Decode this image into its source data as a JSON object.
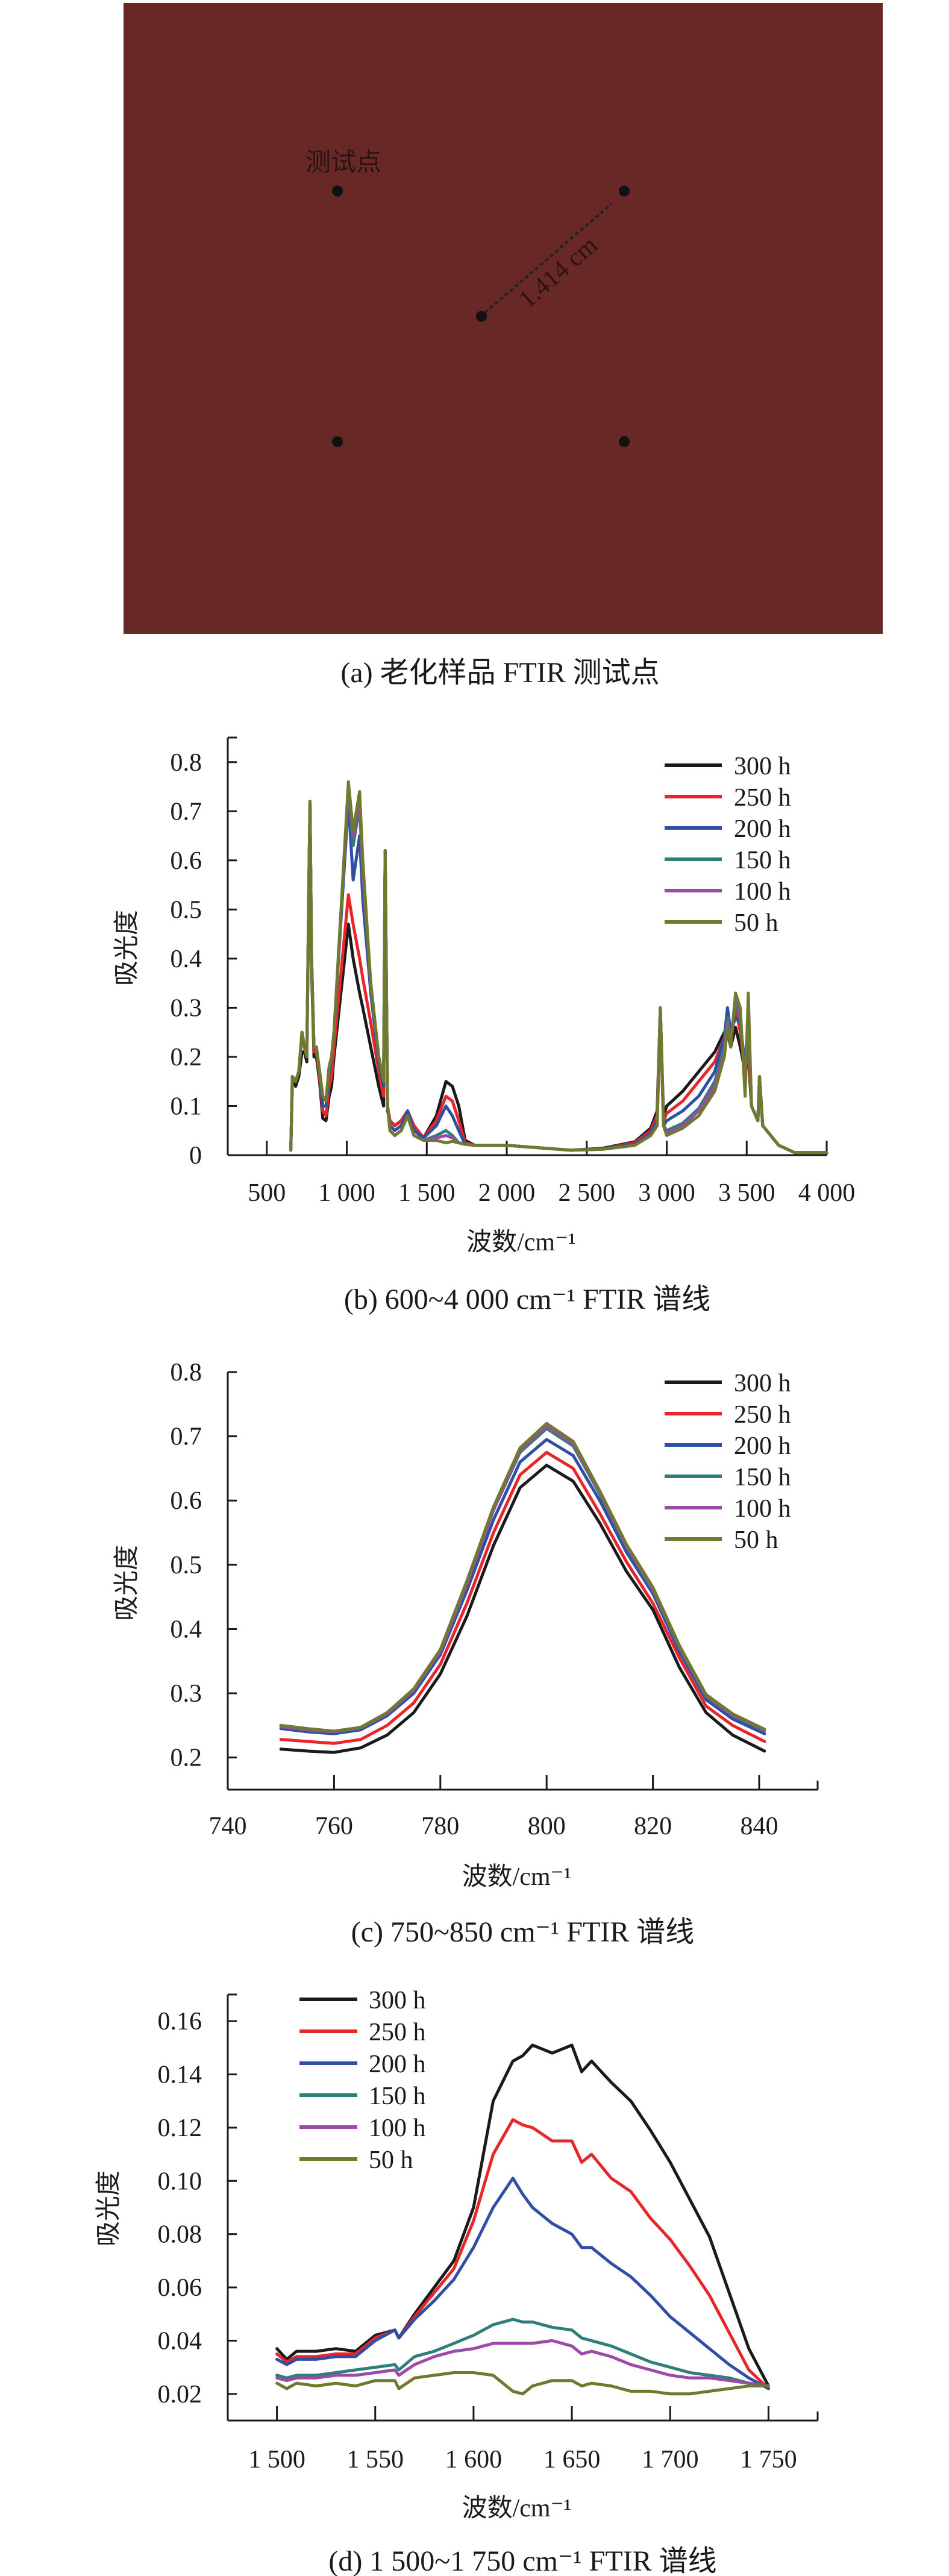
{
  "panel_a": {
    "caption": "(a) 老化样品 FTIR 测试点",
    "point_label": "测试点",
    "distance_label": "1.414 cm",
    "sample_color": "#672826"
  },
  "chart_data": [
    {
      "id": "b",
      "type": "line",
      "caption": "(b) 600~4 000 cm⁻¹ FTIR 谱线",
      "xlabel": "波数/cm⁻¹",
      "ylabel": "吸光度",
      "xlim": [
        256,
        4000
      ],
      "ylim": [
        0,
        0.85
      ],
      "xticks": [
        500,
        1000,
        1500,
        2000,
        2500,
        3000,
        3500,
        4000
      ],
      "xtick_labels": [
        "500",
        "1 000",
        "1 500",
        "2 000",
        "2 500",
        "3 000",
        "3 500",
        "4 000"
      ],
      "yticks": [
        0,
        0.1,
        0.2,
        0.3,
        0.4,
        0.5,
        0.6,
        0.7,
        0.8
      ],
      "ytick_labels": [
        "0",
        "0.1",
        "0.2",
        "0.3",
        "0.4",
        "0.5",
        "0.6",
        "0.7",
        "0.8"
      ],
      "legend_position": "top-right",
      "x": [
        650,
        660,
        680,
        700,
        720,
        735,
        750,
        765,
        770,
        780,
        795,
        810,
        830,
        850,
        870,
        890,
        905,
        920,
        1010,
        1040,
        1080,
        1100,
        1150,
        1200,
        1230,
        1240,
        1255,
        1270,
        1300,
        1340,
        1380,
        1420,
        1480,
        1560,
        1620,
        1660,
        1700,
        1740,
        1800,
        2000,
        2200,
        2400,
        2600,
        2800,
        2900,
        2940,
        2960,
        2980,
        3000,
        3100,
        3200,
        3300,
        3360,
        3380,
        3400,
        3430,
        3460,
        3490,
        3510,
        3530,
        3570,
        3580,
        3600,
        3700,
        3800,
        4000
      ],
      "series": [
        {
          "name": "300 h",
          "color": "#1a1a1a",
          "values": [
            0.01,
            0.16,
            0.14,
            0.16,
            0.21,
            0.21,
            0.19,
            0.58,
            0.7,
            0.38,
            0.2,
            0.2,
            0.15,
            0.075,
            0.07,
            0.12,
            0.14,
            0.2,
            0.47,
            0.4,
            0.33,
            0.3,
            0.22,
            0.14,
            0.1,
            0.62,
            0.09,
            0.07,
            0.06,
            0.07,
            0.09,
            0.06,
            0.035,
            0.08,
            0.15,
            0.14,
            0.1,
            0.03,
            0.02,
            0.02,
            0.015,
            0.01,
            0.014,
            0.027,
            0.055,
            0.09,
            0.3,
            0.08,
            0.1,
            0.13,
            0.17,
            0.21,
            0.25,
            0.25,
            0.22,
            0.26,
            0.22,
            0.17,
            0.2,
            0.1,
            0.07,
            0.16,
            0.06,
            0.02,
            0.005,
            0.005
          ]
        },
        {
          "name": "250 h",
          "color": "#e8262a",
          "values": [
            0.01,
            0.16,
            0.15,
            0.17,
            0.25,
            0.22,
            0.2,
            0.6,
            0.72,
            0.4,
            0.21,
            0.21,
            0.16,
            0.09,
            0.08,
            0.14,
            0.16,
            0.22,
            0.53,
            0.47,
            0.4,
            0.36,
            0.27,
            0.17,
            0.12,
            0.62,
            0.1,
            0.07,
            0.06,
            0.07,
            0.09,
            0.06,
            0.035,
            0.07,
            0.12,
            0.11,
            0.07,
            0.025,
            0.02,
            0.02,
            0.015,
            0.01,
            0.013,
            0.025,
            0.05,
            0.08,
            0.3,
            0.07,
            0.085,
            0.11,
            0.15,
            0.19,
            0.24,
            0.26,
            0.23,
            0.3,
            0.25,
            0.17,
            0.22,
            0.1,
            0.07,
            0.16,
            0.06,
            0.02,
            0.005,
            0.005
          ]
        },
        {
          "name": "200 h",
          "color": "#2e4fa3",
          "values": [
            0.01,
            0.16,
            0.15,
            0.17,
            0.25,
            0.22,
            0.2,
            0.6,
            0.72,
            0.4,
            0.22,
            0.22,
            0.17,
            0.1,
            0.1,
            0.17,
            0.2,
            0.25,
            0.72,
            0.56,
            0.65,
            0.52,
            0.33,
            0.19,
            0.14,
            0.62,
            0.1,
            0.06,
            0.05,
            0.06,
            0.09,
            0.05,
            0.035,
            0.06,
            0.1,
            0.08,
            0.05,
            0.022,
            0.02,
            0.02,
            0.015,
            0.01,
            0.013,
            0.022,
            0.045,
            0.07,
            0.3,
            0.06,
            0.07,
            0.09,
            0.12,
            0.17,
            0.24,
            0.3,
            0.25,
            0.28,
            0.27,
            0.18,
            0.28,
            0.1,
            0.07,
            0.16,
            0.06,
            0.02,
            0.005,
            0.005
          ]
        },
        {
          "name": "150 h",
          "color": "#2e7f7a",
          "values": [
            0.01,
            0.16,
            0.15,
            0.17,
            0.25,
            0.22,
            0.2,
            0.6,
            0.72,
            0.4,
            0.22,
            0.22,
            0.17,
            0.12,
            0.11,
            0.18,
            0.2,
            0.25,
            0.75,
            0.63,
            0.71,
            0.57,
            0.35,
            0.2,
            0.15,
            0.62,
            0.1,
            0.05,
            0.04,
            0.05,
            0.08,
            0.04,
            0.03,
            0.04,
            0.05,
            0.04,
            0.025,
            0.022,
            0.02,
            0.02,
            0.015,
            0.01,
            0.012,
            0.02,
            0.04,
            0.06,
            0.3,
            0.06,
            0.05,
            0.065,
            0.095,
            0.15,
            0.22,
            0.28,
            0.23,
            0.31,
            0.28,
            0.15,
            0.3,
            0.1,
            0.07,
            0.16,
            0.06,
            0.02,
            0.005,
            0.005
          ]
        },
        {
          "name": "100 h",
          "color": "#9b4aa8",
          "values": [
            0.01,
            0.16,
            0.15,
            0.17,
            0.25,
            0.22,
            0.2,
            0.6,
            0.72,
            0.4,
            0.22,
            0.22,
            0.17,
            0.12,
            0.11,
            0.18,
            0.2,
            0.25,
            0.75,
            0.65,
            0.72,
            0.58,
            0.35,
            0.2,
            0.15,
            0.62,
            0.1,
            0.05,
            0.04,
            0.05,
            0.08,
            0.04,
            0.03,
            0.035,
            0.04,
            0.035,
            0.025,
            0.022,
            0.02,
            0.02,
            0.015,
            0.01,
            0.012,
            0.02,
            0.04,
            0.06,
            0.3,
            0.06,
            0.045,
            0.06,
            0.09,
            0.14,
            0.21,
            0.27,
            0.23,
            0.32,
            0.29,
            0.14,
            0.31,
            0.1,
            0.07,
            0.16,
            0.06,
            0.02,
            0.005,
            0.005
          ]
        },
        {
          "name": "50 h",
          "color": "#6f7a2e",
          "values": [
            0.01,
            0.16,
            0.15,
            0.17,
            0.25,
            0.22,
            0.2,
            0.6,
            0.72,
            0.4,
            0.22,
            0.22,
            0.17,
            0.12,
            0.11,
            0.18,
            0.2,
            0.25,
            0.76,
            0.66,
            0.74,
            0.6,
            0.35,
            0.2,
            0.15,
            0.62,
            0.1,
            0.05,
            0.04,
            0.05,
            0.08,
            0.04,
            0.03,
            0.03,
            0.025,
            0.028,
            0.025,
            0.022,
            0.02,
            0.02,
            0.015,
            0.01,
            0.012,
            0.02,
            0.04,
            0.06,
            0.3,
            0.06,
            0.04,
            0.055,
            0.08,
            0.13,
            0.2,
            0.26,
            0.22,
            0.33,
            0.3,
            0.12,
            0.33,
            0.1,
            0.07,
            0.16,
            0.06,
            0.02,
            0.005,
            0.005
          ]
        }
      ]
    },
    {
      "id": "c",
      "type": "line",
      "caption": "(c) 750~850 cm⁻¹ FTIR 谱线",
      "xlabel": "波数/cm⁻¹",
      "ylabel": "吸光度",
      "xlim": [
        740,
        851
      ],
      "ylim": [
        0.15,
        0.8
      ],
      "xticks": [
        740,
        760,
        780,
        800,
        820,
        840
      ],
      "xtick_labels": [
        "740",
        "760",
        "780",
        "800",
        "820",
        "840"
      ],
      "yticks": [
        0.2,
        0.3,
        0.4,
        0.5,
        0.6,
        0.7,
        0.8
      ],
      "ytick_labels": [
        "0.2",
        "0.3",
        "0.4",
        "0.5",
        "0.6",
        "0.7",
        "0.8"
      ],
      "legend_position": "top-right",
      "x": [
        750,
        755,
        760,
        765,
        770,
        775,
        780,
        785,
        790,
        795,
        800,
        805,
        810,
        815,
        820,
        825,
        830,
        835,
        841
      ],
      "series": [
        {
          "name": "300 h",
          "color": "#1a1a1a",
          "values": [
            0.213,
            0.21,
            0.208,
            0.215,
            0.235,
            0.27,
            0.33,
            0.42,
            0.53,
            0.62,
            0.655,
            0.63,
            0.565,
            0.49,
            0.43,
            0.34,
            0.27,
            0.235,
            0.21
          ]
        },
        {
          "name": "250 h",
          "color": "#e8262a",
          "values": [
            0.228,
            0.225,
            0.222,
            0.228,
            0.25,
            0.285,
            0.345,
            0.44,
            0.55,
            0.64,
            0.675,
            0.65,
            0.58,
            0.505,
            0.44,
            0.355,
            0.28,
            0.25,
            0.225
          ]
        },
        {
          "name": "200 h",
          "color": "#2e4fa3",
          "values": [
            0.245,
            0.24,
            0.237,
            0.243,
            0.265,
            0.3,
            0.36,
            0.46,
            0.57,
            0.66,
            0.695,
            0.67,
            0.6,
            0.52,
            0.455,
            0.365,
            0.29,
            0.26,
            0.237
          ]
        },
        {
          "name": "150 h",
          "color": "#2e7f7a",
          "values": [
            0.248,
            0.243,
            0.24,
            0.246,
            0.268,
            0.305,
            0.365,
            0.47,
            0.585,
            0.675,
            0.712,
            0.685,
            0.61,
            0.528,
            0.46,
            0.37,
            0.295,
            0.265,
            0.242
          ]
        },
        {
          "name": "100 h",
          "color": "#9b4aa8",
          "values": [
            0.248,
            0.243,
            0.24,
            0.246,
            0.268,
            0.305,
            0.365,
            0.47,
            0.585,
            0.678,
            0.716,
            0.688,
            0.612,
            0.53,
            0.462,
            0.372,
            0.296,
            0.266,
            0.243
          ]
        },
        {
          "name": "50 h",
          "color": "#6f7a2e",
          "values": [
            0.25,
            0.245,
            0.241,
            0.247,
            0.27,
            0.307,
            0.368,
            0.475,
            0.59,
            0.682,
            0.72,
            0.692,
            0.615,
            0.532,
            0.465,
            0.374,
            0.298,
            0.268,
            0.244
          ]
        }
      ]
    },
    {
      "id": "d",
      "type": "line",
      "caption": "(d) 1 500~1 750 cm⁻¹ FTIR 谱线",
      "xlabel": "波数/cm⁻¹",
      "ylabel": "吸光度",
      "xlim": [
        1475,
        1775
      ],
      "ylim": [
        0.01,
        0.17
      ],
      "xticks": [
        1500,
        1550,
        1600,
        1650,
        1700,
        1750
      ],
      "xtick_labels": [
        "1 500",
        "1 550",
        "1 600",
        "1 650",
        "1 700",
        "1 750"
      ],
      "yticks": [
        0.02,
        0.04,
        0.06,
        0.08,
        0.1,
        0.12,
        0.14,
        0.16
      ],
      "ytick_labels": [
        "0.02",
        "0.04",
        "0.06",
        "0.08",
        "0.10",
        "0.12",
        "0.14",
        "0.16"
      ],
      "legend_position": "top-left",
      "x": [
        1500,
        1505,
        1510,
        1520,
        1530,
        1540,
        1550,
        1560,
        1562,
        1570,
        1580,
        1590,
        1600,
        1610,
        1620,
        1625,
        1630,
        1640,
        1650,
        1655,
        1660,
        1670,
        1680,
        1690,
        1700,
        1710,
        1720,
        1730,
        1740,
        1750
      ],
      "series": [
        {
          "name": "300 h",
          "color": "#1a1a1a",
          "values": [
            0.037,
            0.033,
            0.036,
            0.036,
            0.037,
            0.036,
            0.042,
            0.044,
            0.041,
            0.05,
            0.06,
            0.07,
            0.09,
            0.13,
            0.145,
            0.147,
            0.151,
            0.148,
            0.151,
            0.141,
            0.145,
            0.137,
            0.13,
            0.119,
            0.107,
            0.093,
            0.079,
            0.058,
            0.037,
            0.023
          ]
        },
        {
          "name": "250 h",
          "color": "#e8262a",
          "values": [
            0.035,
            0.032,
            0.034,
            0.034,
            0.035,
            0.035,
            0.041,
            0.044,
            0.041,
            0.049,
            0.058,
            0.067,
            0.085,
            0.11,
            0.123,
            0.121,
            0.12,
            0.115,
            0.115,
            0.107,
            0.11,
            0.101,
            0.096,
            0.086,
            0.078,
            0.068,
            0.057,
            0.043,
            0.029,
            0.022
          ]
        },
        {
          "name": "200 h",
          "color": "#2e4fa3",
          "values": [
            0.033,
            0.031,
            0.033,
            0.033,
            0.034,
            0.034,
            0.04,
            0.044,
            0.041,
            0.048,
            0.055,
            0.063,
            0.075,
            0.09,
            0.101,
            0.095,
            0.09,
            0.084,
            0.08,
            0.075,
            0.075,
            0.069,
            0.064,
            0.057,
            0.049,
            0.043,
            0.037,
            0.031,
            0.026,
            0.022
          ]
        },
        {
          "name": "150 h",
          "color": "#2e7f7a",
          "values": [
            0.027,
            0.026,
            0.027,
            0.027,
            0.028,
            0.029,
            0.03,
            0.031,
            0.029,
            0.034,
            0.036,
            0.039,
            0.042,
            0.046,
            0.048,
            0.047,
            0.047,
            0.045,
            0.044,
            0.041,
            0.04,
            0.038,
            0.035,
            0.032,
            0.03,
            0.028,
            0.027,
            0.026,
            0.024,
            0.023
          ]
        },
        {
          "name": "100 h",
          "color": "#9b4aa8",
          "values": [
            0.026,
            0.025,
            0.026,
            0.026,
            0.027,
            0.027,
            0.028,
            0.029,
            0.027,
            0.031,
            0.034,
            0.036,
            0.037,
            0.039,
            0.039,
            0.039,
            0.039,
            0.04,
            0.038,
            0.035,
            0.036,
            0.034,
            0.031,
            0.029,
            0.027,
            0.026,
            0.026,
            0.025,
            0.024,
            0.023
          ]
        },
        {
          "name": "50 h",
          "color": "#6f7a2e",
          "values": [
            0.024,
            0.022,
            0.024,
            0.023,
            0.024,
            0.023,
            0.025,
            0.025,
            0.022,
            0.026,
            0.027,
            0.028,
            0.028,
            0.027,
            0.021,
            0.02,
            0.023,
            0.025,
            0.025,
            0.023,
            0.024,
            0.023,
            0.021,
            0.021,
            0.02,
            0.02,
            0.021,
            0.022,
            0.023,
            0.023
          ]
        }
      ]
    }
  ]
}
